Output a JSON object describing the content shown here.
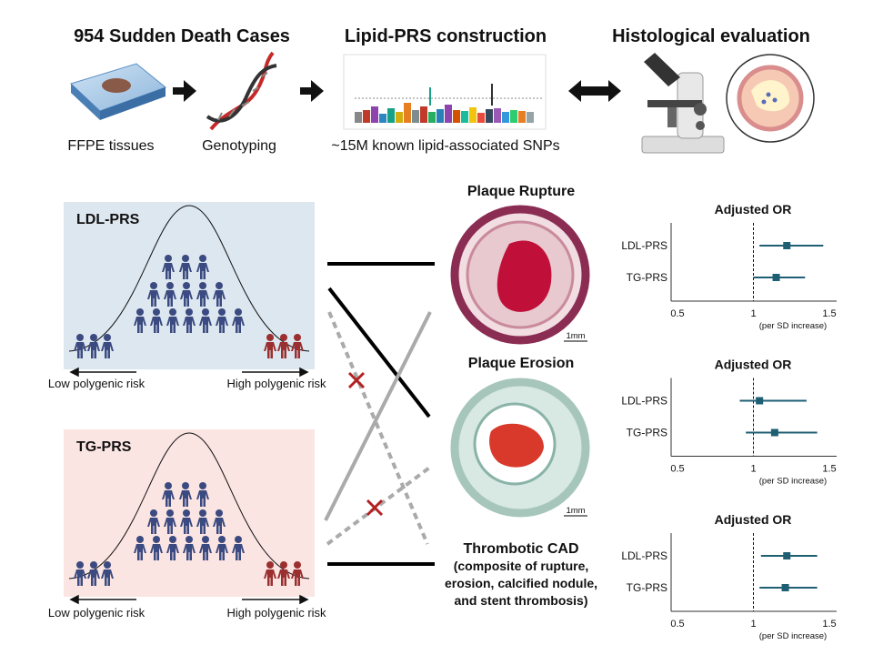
{
  "titles": [
    "954 Sudden Death Cases",
    "Lipid-PRS construction",
    "Histological evaluation"
  ],
  "captions": [
    "FFPE tissues",
    "Genotyping",
    "~15M known lipid-associated SNPs"
  ],
  "panels": [
    {
      "label": "LDL-PRS",
      "low": "Low polygenic risk",
      "high": "High polygenic risk"
    },
    {
      "label": "TG-PRS",
      "low": "Low polygenic risk",
      "high": "High polygenic risk"
    }
  ],
  "outcomes": [
    {
      "title": "Plaque Rupture",
      "scale": "1mm"
    },
    {
      "title": "Plaque Erosion",
      "scale": "1mm"
    },
    {
      "title": "Thrombotic CAD",
      "detail": [
        "(composite of rupture,",
        "erosion, calcified nodule,",
        "and stent thrombosis)"
      ]
    }
  ],
  "forest_plots": [
    {
      "title": "Adjusted OR",
      "xlim": [
        0.5,
        1.5
      ],
      "xticks": [
        0.5,
        1,
        1.5
      ],
      "reference": 1,
      "xlabel": "(per SD increase)",
      "rows": [
        {
          "label": "LDL-PRS",
          "or": 1.22,
          "ci": [
            1.04,
            1.46
          ]
        },
        {
          "label": "TG-PRS",
          "or": 1.15,
          "ci": [
            1.0,
            1.34
          ]
        }
      ]
    },
    {
      "title": "Adjusted OR",
      "xlim": [
        0.5,
        1.5
      ],
      "xticks": [
        0.5,
        1,
        1.5
      ],
      "reference": 1,
      "xlabel": "(per SD increase)",
      "rows": [
        {
          "label": "LDL-PRS",
          "or": 1.04,
          "ci": [
            0.91,
            1.35
          ]
        },
        {
          "label": "TG-PRS",
          "or": 1.14,
          "ci": [
            0.95,
            1.42
          ]
        }
      ]
    },
    {
      "title": "Adjusted OR",
      "xlim": [
        0.5,
        1.5
      ],
      "xticks": [
        0.5,
        1,
        1.5
      ],
      "reference": 1,
      "xlabel": "(per SD increase)",
      "rows": [
        {
          "label": "LDL-PRS",
          "or": 1.22,
          "ci": [
            1.05,
            1.42
          ]
        },
        {
          "label": "TG-PRS",
          "or": 1.21,
          "ci": [
            1.04,
            1.42
          ]
        }
      ]
    }
  ]
}
